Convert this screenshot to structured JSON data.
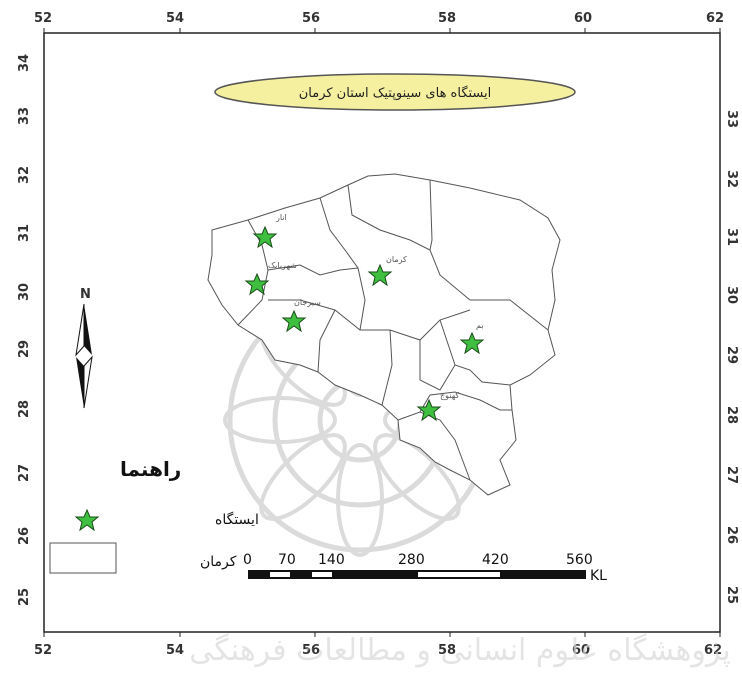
{
  "map": {
    "title": "ایستگاه های سینوپتیک استان کرمان",
    "axis": {
      "x_ticks": [
        "52",
        "54",
        "56",
        "58",
        "60",
        "62"
      ],
      "y_ticks": [
        "34",
        "33",
        "32",
        "31",
        "30",
        "29",
        "28",
        "27",
        "26",
        "25"
      ]
    },
    "north_label": "N",
    "stations": [
      {
        "name": "انار"
      },
      {
        "name": "شهربابک"
      },
      {
        "name": "سیرجان"
      },
      {
        "name": "کرمان"
      },
      {
        "name": "بم"
      },
      {
        "name": "کهنوج"
      }
    ],
    "legend": {
      "title": "راهنما",
      "items": [
        {
          "label": "ایستگاه",
          "symbol": "star-icon"
        },
        {
          "label": "کرمان",
          "symbol": "rectangle-icon"
        }
      ]
    },
    "scale_bar": {
      "labels": [
        "0",
        "70",
        "140",
        "280",
        "420",
        "560"
      ],
      "unit": "KL"
    },
    "watermark": "پژوهشگاه علوم انسانی و مطالعات فرهنگی",
    "colors": {
      "star": "#3fbf3f",
      "title_fill": "#f5f0a0",
      "border": "#555555"
    }
  }
}
